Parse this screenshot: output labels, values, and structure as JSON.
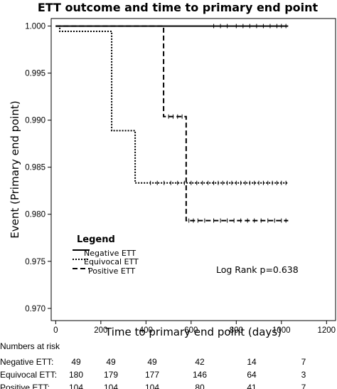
{
  "chart_data": {
    "type": "line",
    "title": "ETT outcome and time to primary end point",
    "xlabel": "Time to primary end point (days)",
    "ylabel": "Event (Primary end point)",
    "xlim": [
      -20,
      1240
    ],
    "ylim": [
      0.9687,
      1.0008
    ],
    "xticks": [
      0,
      200,
      400,
      600,
      800,
      1000,
      1200
    ],
    "xtick_labels": [
      "0",
      "200",
      "400",
      "600",
      "800",
      "1000",
      "1200"
    ],
    "yticks": [
      0.97,
      0.975,
      0.98,
      0.985,
      0.99,
      0.995,
      1.0
    ],
    "ytick_labels": [
      "0.970",
      "0.975",
      "0.980",
      "0.985",
      "0.990",
      "0.995",
      "1.000"
    ],
    "grid": false,
    "legend": {
      "title": "Legend",
      "placement": "bottom-left",
      "entries": [
        "Negative ETT",
        "Equivocal ETT",
        "Positive ETT"
      ]
    },
    "annotation": "Log Rank p=0.638",
    "series": [
      {
        "name": "Negative ETT",
        "style": "solid",
        "step_x": [
          0,
          1030
        ],
        "step_y": [
          1.0,
          1.0
        ],
        "censor_x": [
          700,
          730,
          760,
          800,
          830,
          860,
          890,
          920,
          950,
          980,
          1000,
          1020
        ]
      },
      {
        "name": "Equivocal ETT",
        "style": "dotted",
        "step_x": [
          0,
          18,
          248,
          352,
          1030
        ],
        "step_y": [
          1.0,
          0.99944,
          0.98889,
          0.98333,
          0.98333
        ],
        "censor_x": [
          420,
          450,
          480,
          510,
          540,
          570,
          600,
          625,
          650,
          675,
          700,
          720,
          740,
          760,
          780,
          800,
          820,
          840,
          860,
          880,
          900,
          920,
          940,
          960,
          980,
          1000,
          1020
        ]
      },
      {
        "name": "Positive ETT",
        "style": "dashed",
        "step_x": [
          0,
          440,
          478,
          578,
          1030
        ],
        "step_y": [
          1.0,
          1.0,
          0.99038,
          0.97933,
          0.97933
        ],
        "censor_x": [
          500,
          520,
          540,
          560,
          590,
          610,
          630,
          660,
          700,
          730,
          760,
          790,
          820,
          850,
          880,
          910,
          940,
          970,
          1000,
          1020
        ]
      }
    ],
    "risk_table": {
      "title": "Numbers at risk",
      "rows": [
        {
          "label": "Negative ETT:",
          "values": [
            "49",
            "49",
            "49",
            "42",
            "14",
            "7"
          ]
        },
        {
          "label": "Equivocal ETT:",
          "values": [
            "180",
            "179",
            "177",
            "146",
            "64",
            "3"
          ]
        },
        {
          "label": "Positive ETT:",
          "values": [
            "104",
            "104",
            "104",
            "80",
            "41",
            "7"
          ]
        }
      ]
    }
  }
}
